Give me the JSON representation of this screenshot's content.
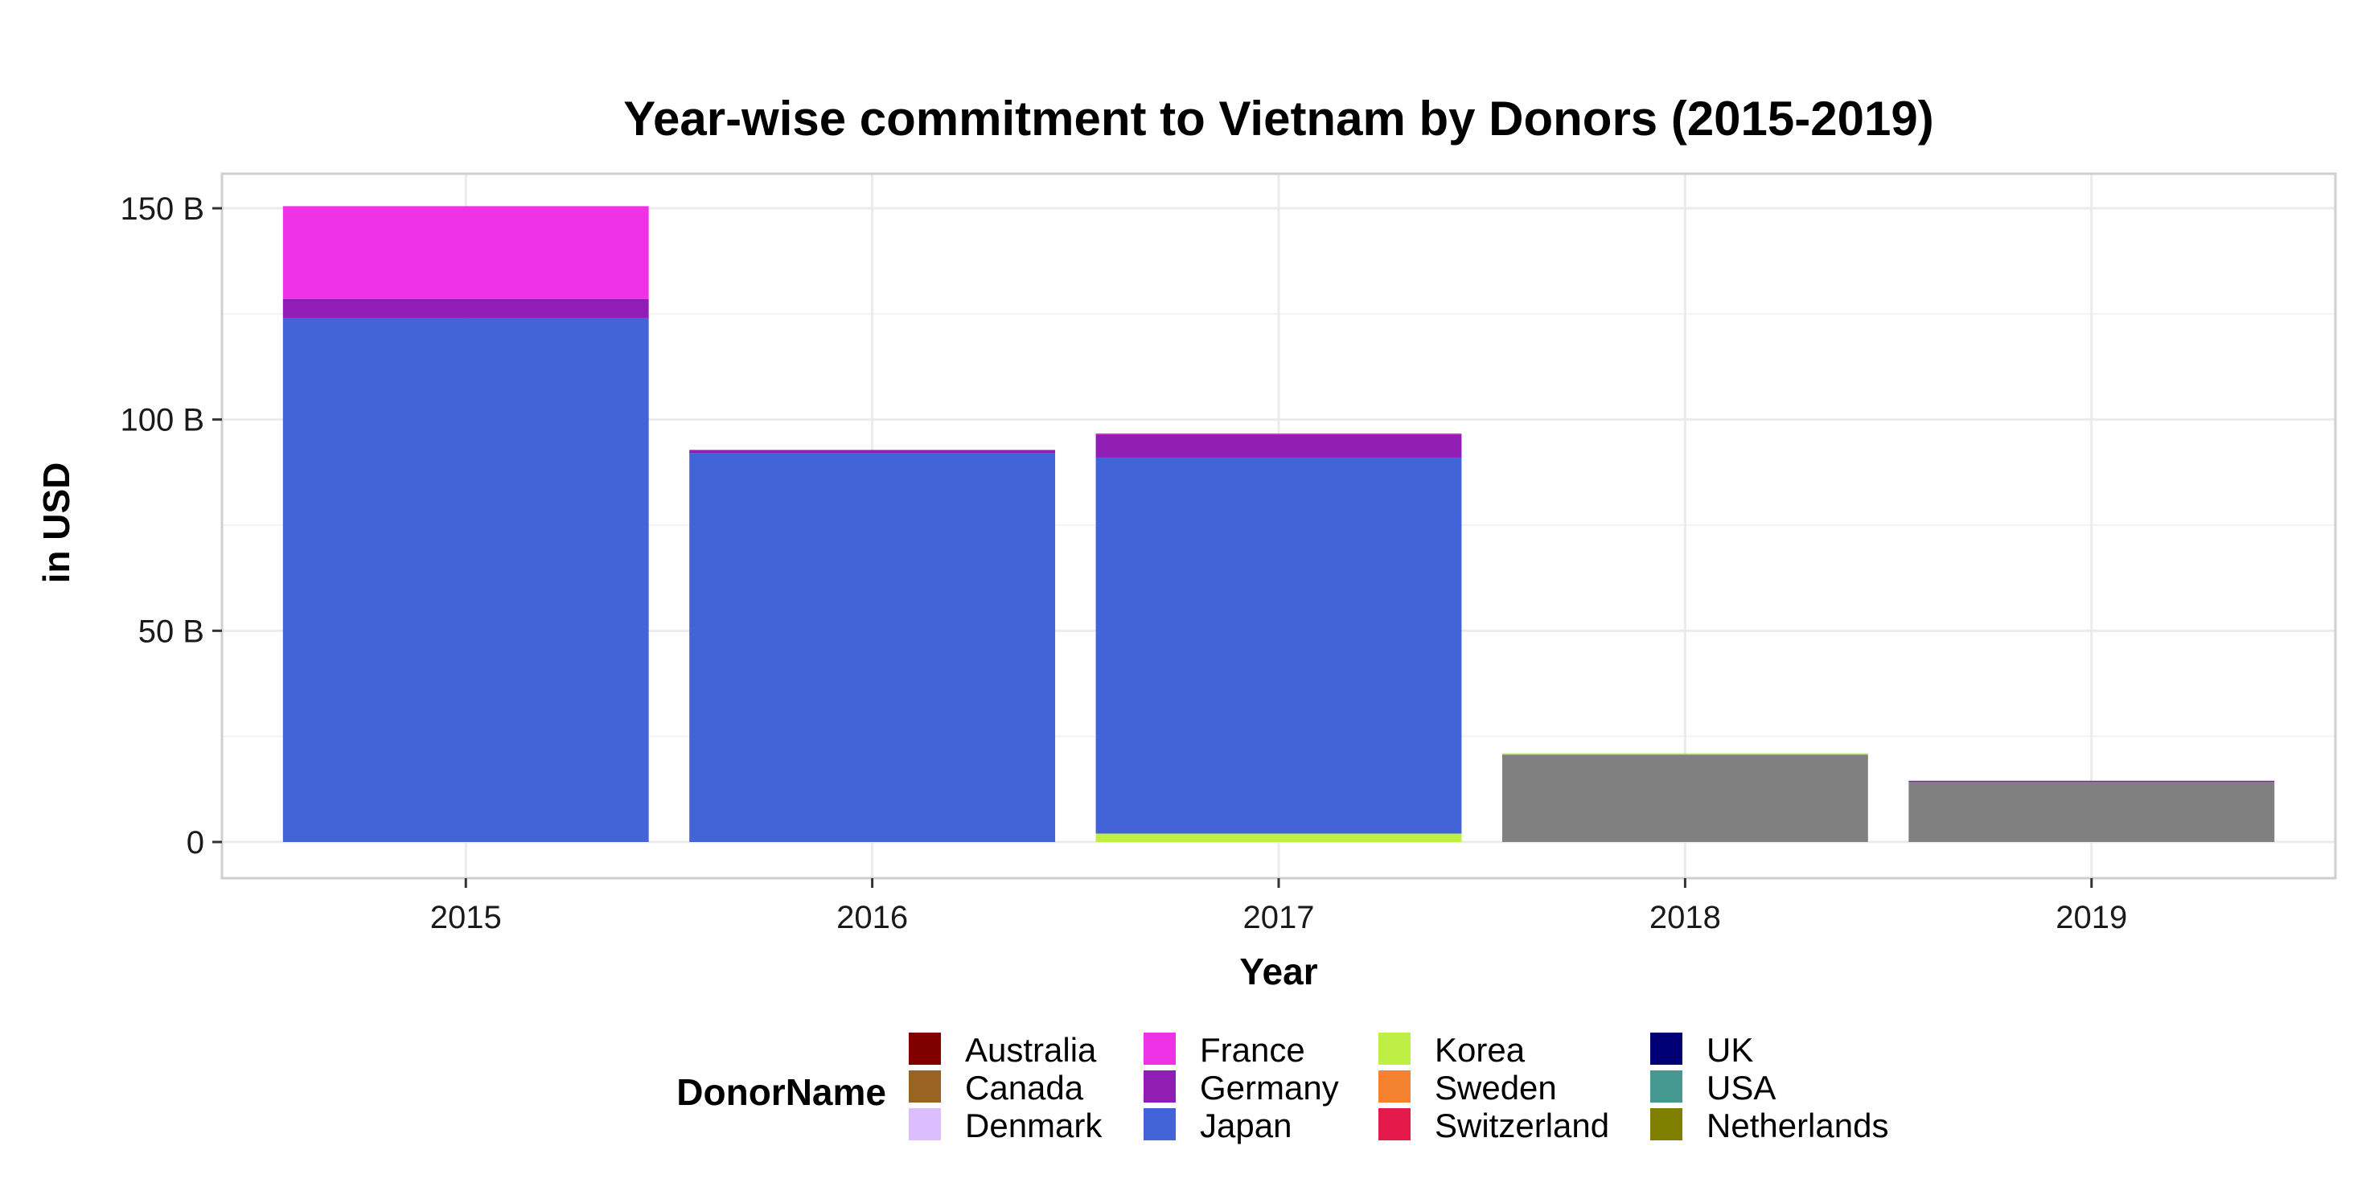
{
  "chart_data": {
    "type": "bar",
    "stacked": true,
    "title": "Year-wise commitment to Vietnam by Donors (2015-2019)",
    "xlabel": "Year",
    "ylabel": "in USD",
    "categories": [
      "2015",
      "2016",
      "2017",
      "2018",
      "2019"
    ],
    "ylim": [
      0,
      158
    ],
    "yticks": [
      {
        "value": 0,
        "label": "0"
      },
      {
        "value": 50,
        "label": "50 B"
      },
      {
        "value": 100,
        "label": "100 B"
      },
      {
        "value": 150,
        "label": "150 B"
      }
    ],
    "grid": true,
    "legend_title": "DonorName",
    "legend_position": "bottom",
    "series": [
      {
        "name": "Australia",
        "color": "#800000",
        "values": [
          0,
          0,
          0,
          0,
          0
        ]
      },
      {
        "name": "Canada",
        "color": "#9A6324",
        "values": [
          0,
          0,
          0,
          0,
          0
        ]
      },
      {
        "name": "Denmark",
        "color": "#DCBEFF",
        "values": [
          0,
          0,
          0,
          0,
          0
        ]
      },
      {
        "name": "France",
        "color": "#F032E6",
        "values": [
          22,
          0,
          0.2,
          0,
          0
        ]
      },
      {
        "name": "Germany",
        "color": "#911EB4",
        "values": [
          4.5,
          0.8,
          5.5,
          0,
          0.3
        ]
      },
      {
        "name": "Japan",
        "color": "#4363D8",
        "values": [
          124,
          92,
          89,
          0,
          0
        ]
      },
      {
        "name": "Korea",
        "color": "#BFEF45",
        "values": [
          0,
          0,
          2,
          0.3,
          0
        ]
      },
      {
        "name": "Sweden",
        "color": "#F58231",
        "values": [
          0,
          0,
          0,
          0,
          0
        ]
      },
      {
        "name": "Switzerland",
        "color": "#E6194B",
        "values": [
          0,
          0,
          0,
          0,
          0
        ]
      },
      {
        "name": "UK",
        "color": "#000075",
        "values": [
          0,
          0,
          0,
          0,
          0
        ]
      },
      {
        "name": "USA",
        "color": "#469990",
        "values": [
          0,
          0,
          0,
          0,
          0
        ]
      },
      {
        "name": "Netherlands",
        "color": "#808000",
        "values": [
          0,
          0,
          0,
          0,
          0
        ]
      },
      {
        "name": "",
        "color": "#808080",
        "values": [
          0,
          0,
          0,
          20.7,
          14.2
        ]
      }
    ]
  }
}
